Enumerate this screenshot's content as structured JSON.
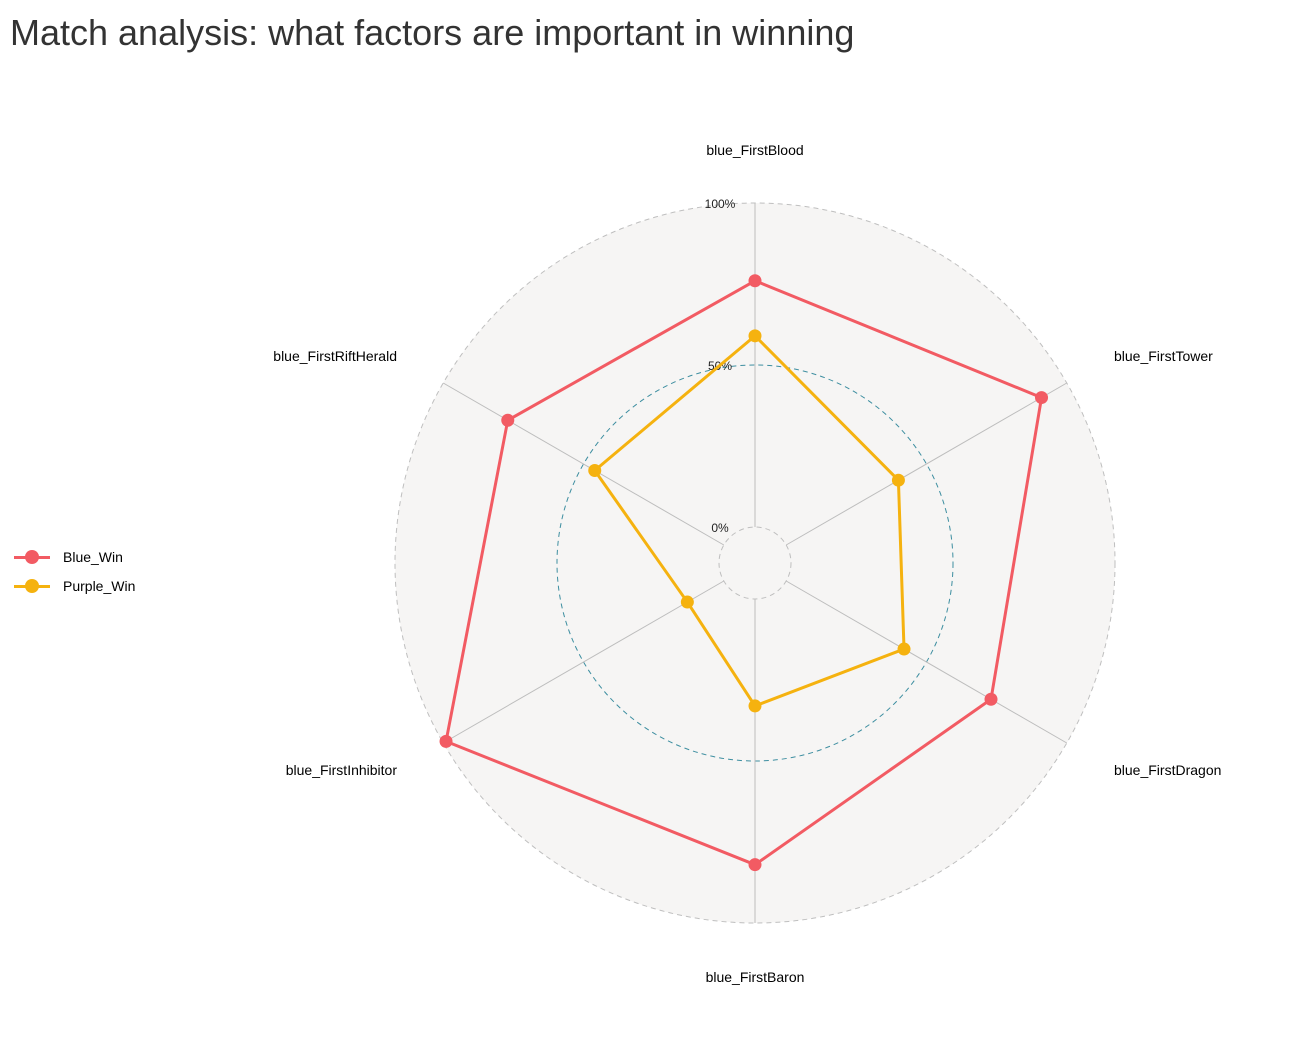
{
  "title": "Match analysis: what factors are important in winning",
  "chart_data": {
    "type": "radar",
    "axes": [
      "blue_FirstBlood",
      "blue_FirstTower",
      "blue_FirstDragon",
      "blue_FirstBaron",
      "blue_FirstInhibitor",
      "blue_FirstRiftHerald"
    ],
    "grid_labels": [
      "0%",
      "50%",
      "100%"
    ],
    "range": [
      0,
      1
    ],
    "series": [
      {
        "name": "Blue_Win",
        "color": "#f25b63",
        "values": [
          0.76,
          0.91,
          0.73,
          0.82,
          0.99,
          0.77
        ]
      },
      {
        "name": "Purple_Win",
        "color": "#f5b20f",
        "values": [
          0.59,
          0.4,
          0.42,
          0.33,
          0.13,
          0.46
        ]
      }
    ],
    "legend_position": "left"
  }
}
